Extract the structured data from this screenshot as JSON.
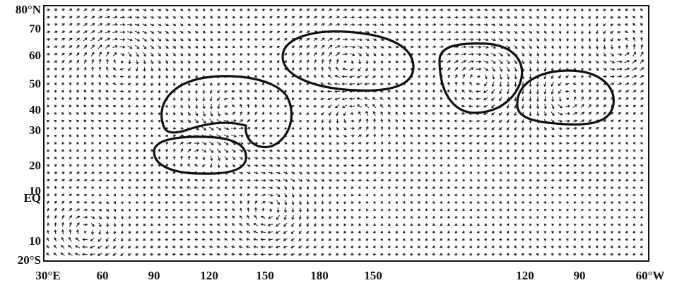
{
  "map": {
    "y_labels": [
      "80°N",
      "70",
      "60",
      "50",
      "40",
      "30",
      "20",
      "10",
      "EQ",
      "10",
      "20°S"
    ],
    "x_labels": [
      "30°E",
      "60",
      "90",
      "120",
      "150",
      "180",
      "150",
      "120",
      "90",
      "60°W"
    ]
  }
}
